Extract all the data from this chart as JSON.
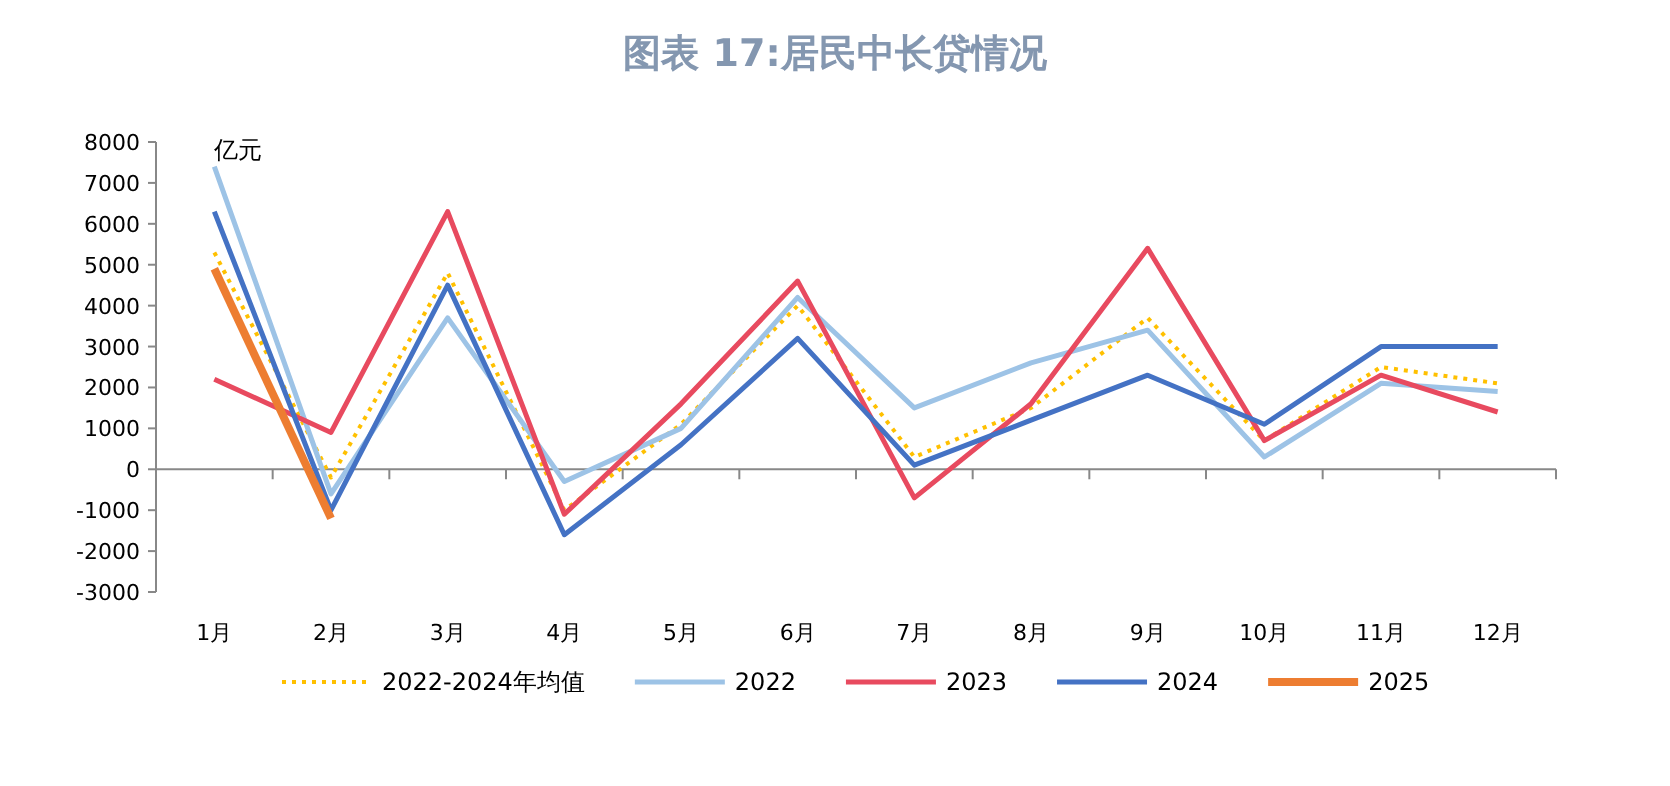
{
  "chart_data": {
    "type": "line",
    "title": "图表 17:居民中长贷情况",
    "annotations": [
      "亿元"
    ],
    "categories": [
      "1月",
      "2月",
      "3月",
      "4月",
      "5月",
      "6月",
      "7月",
      "8月",
      "9月",
      "10月",
      "11月",
      "12月"
    ],
    "ylim": [
      -3000,
      8000
    ],
    "yticks": [
      -3000,
      -2000,
      -1000,
      0,
      1000,
      2000,
      3000,
      4000,
      5000,
      6000,
      7000,
      8000
    ],
    "legend": "bottom",
    "marker": "none",
    "series": [
      {
        "name": "2022-2024年均值",
        "color": "#ffc000",
        "line_style": "dotted",
        "values": [
          5300,
          -200,
          4800,
          -1000,
          1100,
          4000,
          300,
          1500,
          3700,
          700,
          2500,
          2100
        ]
      },
      {
        "name": "2022",
        "color": "#9dc3e6",
        "line_style": "solid",
        "values": [
          7400,
          -600,
          3700,
          -300,
          1000,
          4200,
          1500,
          2600,
          3400,
          300,
          2100,
          1900
        ]
      },
      {
        "name": "2023",
        "color": "#e84a5f",
        "line_style": "solid",
        "values": [
          2200,
          900,
          6300,
          -1100,
          1600,
          4600,
          -700,
          1600,
          5400,
          700,
          2300,
          1400
        ]
      },
      {
        "name": "2024",
        "color": "#4472c4",
        "line_style": "solid",
        "values": [
          6300,
          -1000,
          4500,
          -1600,
          600,
          3200,
          100,
          1200,
          2300,
          1100,
          3000,
          3000
        ]
      },
      {
        "name": "2025",
        "color": "#ed7d31",
        "line_style": "solid",
        "values": [
          4900,
          -1200,
          null,
          null,
          null,
          null,
          null,
          null,
          null,
          null,
          null,
          null
        ]
      }
    ]
  }
}
